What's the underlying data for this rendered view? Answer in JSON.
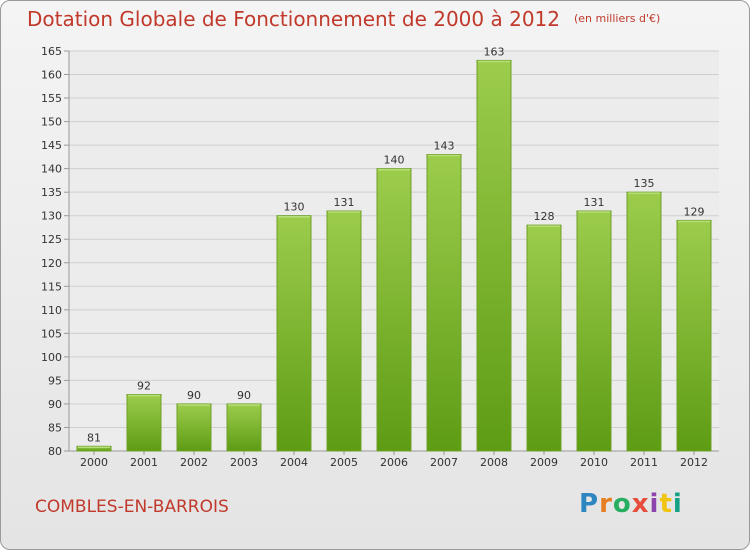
{
  "chart_data": {
    "type": "bar",
    "title": "Dotation Globale de Fonctionnement de 2000 à 2012",
    "unit_note": "(en milliers d'€)",
    "categories": [
      "2000",
      "2001",
      "2002",
      "2003",
      "2004",
      "2005",
      "2006",
      "2007",
      "2008",
      "2009",
      "2010",
      "2011",
      "2012"
    ],
    "values": [
      81,
      92,
      90,
      90,
      130,
      131,
      140,
      143,
      163,
      128,
      131,
      135,
      129
    ],
    "ylim": [
      80,
      165
    ],
    "yticks": [
      80,
      85,
      90,
      95,
      100,
      105,
      110,
      115,
      120,
      125,
      130,
      135,
      140,
      145,
      150,
      155,
      160,
      165
    ],
    "grid": true,
    "bar_color_top": "#9ccc4c",
    "bar_color_bottom": "#5e9c14"
  },
  "footer": {
    "commune": "COMBLES-EN-BARROIS",
    "logo_letters": [
      "P",
      "r",
      "o",
      "x",
      "i",
      "t",
      "i"
    ]
  }
}
